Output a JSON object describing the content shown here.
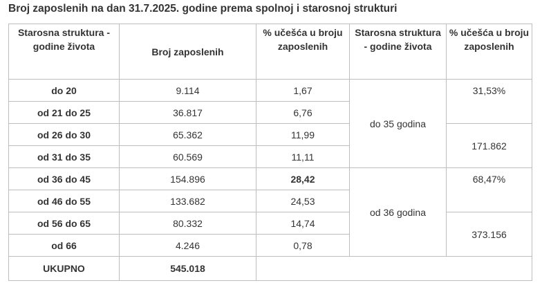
{
  "title": "Broj zaposlenih na dan 31.7.2025. godine prema spolnoj i starosnoj strukturi",
  "table": {
    "header": [
      "Starosna struktura - godine života",
      "Broj zaposlenih",
      "% učešća u broju zaposlenih",
      "Starosna struktura - godine života",
      "% učešća u broju zaposlenih"
    ],
    "rows": [
      [
        "do 20",
        "9.114",
        "1,67"
      ],
      [
        "od 21 do 25",
        "36.817",
        "6,76"
      ],
      [
        "od 26 do 30",
        "65.362",
        "11,99"
      ],
      [
        "od 31 do 35",
        "60.569",
        "11,11"
      ],
      [
        "od 36 do 45",
        "154.896",
        "28,42"
      ],
      [
        "od 46 do 55",
        "133.682",
        "24,53"
      ],
      [
        "od 56 do 65",
        "80.332",
        "14,74"
      ],
      [
        "od 66",
        "4.246",
        "0,78"
      ]
    ],
    "groups": [
      {
        "label": "do 35 godina",
        "share": "31,53%",
        "count": "171.862"
      },
      {
        "label": "od 36 godina",
        "share": "68,47%",
        "count": "373.156"
      }
    ],
    "total": {
      "label": "UKUPNO",
      "count": "545.018"
    }
  }
}
